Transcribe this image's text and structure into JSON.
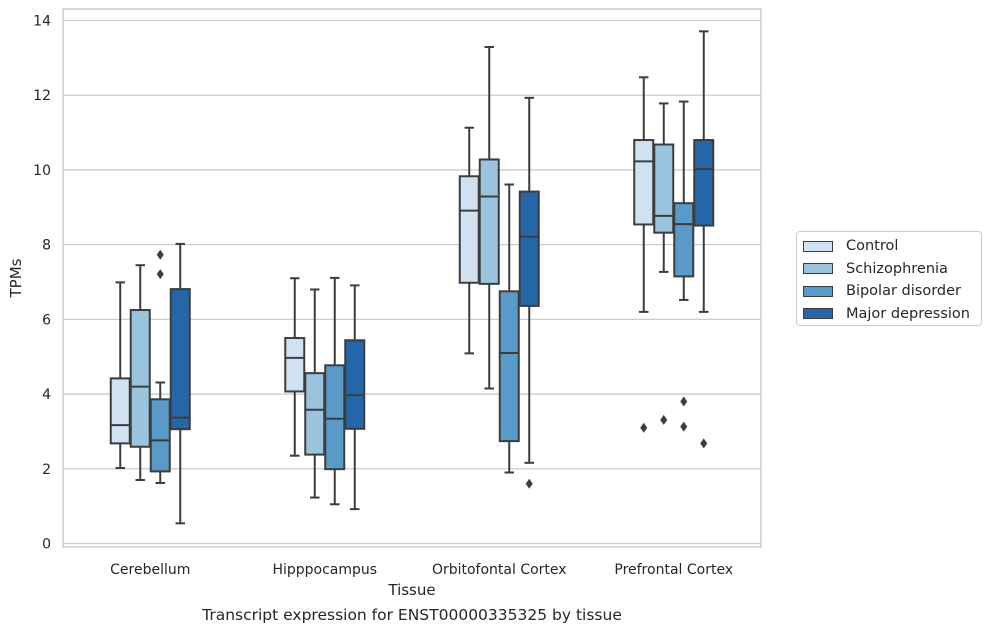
{
  "chart_data": {
    "type": "box",
    "title": "",
    "caption": "Transcript expression for ENST00000335325 by tissue",
    "xlabel": "Tissue",
    "ylabel": "TPMs",
    "ylim": [
      -0.1,
      14.35
    ],
    "yticks": [
      "0",
      "2",
      "4",
      "6",
      "8",
      "10",
      "12",
      "14"
    ],
    "grid": true,
    "legend_position": "right",
    "categories": [
      "Cerebellum",
      "Hipppocampus",
      "Orbitofontal Cortex",
      "Prefrontal Cortex"
    ],
    "series": [
      {
        "name": "Control",
        "color": "#d0e1f2",
        "boxes": [
          {
            "whisker_low": 2.02,
            "q1": 2.68,
            "median": 3.17,
            "q3": 4.42,
            "whisker_high": 6.99,
            "outliers": []
          },
          {
            "whisker_low": 2.35,
            "q1": 4.07,
            "median": 4.97,
            "q3": 5.5,
            "whisker_high": 7.1,
            "outliers": []
          },
          {
            "whisker_low": 5.09,
            "q1": 6.98,
            "median": 8.91,
            "q3": 9.83,
            "whisker_high": 11.13,
            "outliers": []
          },
          {
            "whisker_low": 6.2,
            "q1": 8.54,
            "median": 10.23,
            "q3": 10.8,
            "whisker_high": 12.48,
            "outliers": [
              3.1
            ]
          }
        ]
      },
      {
        "name": "Schizophrenia",
        "color": "#9ac3de",
        "boxes": [
          {
            "whisker_low": 1.7,
            "q1": 2.59,
            "median": 4.2,
            "q3": 6.25,
            "whisker_high": 7.45,
            "outliers": []
          },
          {
            "whisker_low": 1.23,
            "q1": 2.38,
            "median": 3.58,
            "q3": 4.56,
            "whisker_high": 6.8,
            "outliers": []
          },
          {
            "whisker_low": 4.15,
            "q1": 6.95,
            "median": 9.29,
            "q3": 10.28,
            "whisker_high": 13.29,
            "outliers": []
          },
          {
            "whisker_low": 7.27,
            "q1": 8.32,
            "median": 8.77,
            "q3": 10.68,
            "whisker_high": 11.78,
            "outliers": [
              3.31
            ]
          }
        ]
      },
      {
        "name": "Bipolar disorder",
        "color": "#5a9ac8",
        "boxes": [
          {
            "whisker_low": 1.62,
            "q1": 1.93,
            "median": 2.76,
            "q3": 3.86,
            "whisker_high": 4.31,
            "outliers": [
              7.21,
              7.73
            ]
          },
          {
            "whisker_low": 1.05,
            "q1": 1.99,
            "median": 3.34,
            "q3": 4.77,
            "whisker_high": 7.11,
            "outliers": []
          },
          {
            "whisker_low": 1.9,
            "q1": 2.74,
            "median": 5.1,
            "q3": 6.75,
            "whisker_high": 9.61,
            "outliers": []
          },
          {
            "whisker_low": 6.52,
            "q1": 7.15,
            "median": 8.55,
            "q3": 9.11,
            "whisker_high": 11.83,
            "outliers": [
              3.8,
              3.13
            ]
          }
        ]
      },
      {
        "name": "Major depression",
        "color": "#2466a7",
        "boxes": [
          {
            "whisker_low": 0.54,
            "q1": 3.06,
            "median": 3.37,
            "q3": 6.81,
            "whisker_high": 8.02,
            "outliers": []
          },
          {
            "whisker_low": 0.92,
            "q1": 3.07,
            "median": 3.97,
            "q3": 5.44,
            "whisker_high": 6.91,
            "outliers": []
          },
          {
            "whisker_low": 2.16,
            "q1": 6.36,
            "median": 8.21,
            "q3": 9.42,
            "whisker_high": 11.93,
            "outliers": [
              1.6
            ]
          },
          {
            "whisker_low": 6.2,
            "q1": 8.51,
            "median": 10.02,
            "q3": 10.8,
            "whisker_high": 13.71,
            "outliers": [
              2.68
            ]
          }
        ]
      }
    ]
  }
}
